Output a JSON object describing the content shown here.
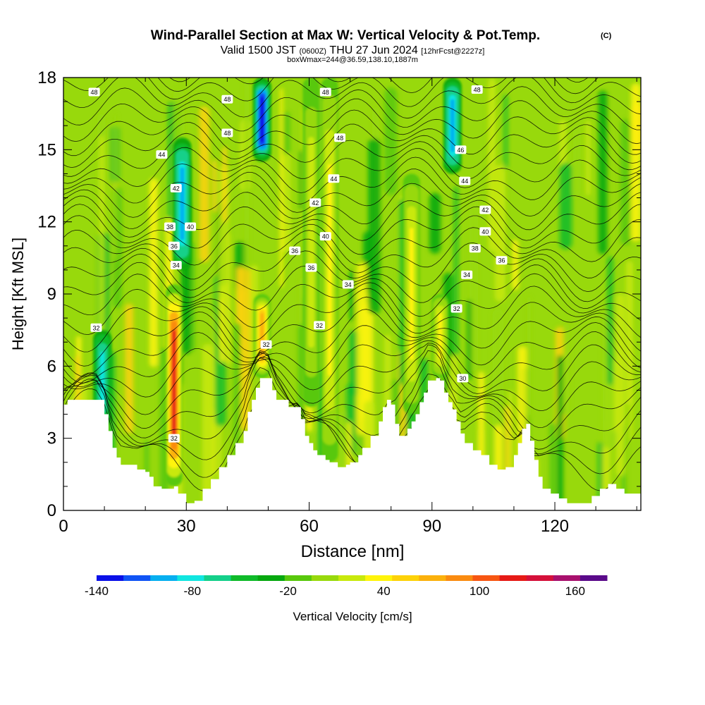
{
  "title": {
    "main": "Wind-Parallel Section at Max W: Vertical Velocity & Pot.Temp.",
    "mark": "(C)",
    "line2_a": "Valid 1500 JST",
    "line2_b": "(0600Z)",
    "line2_c": "THU 27 Jun 2024",
    "line2_d": "[12hrFcst@2227z]",
    "line3": "boxWmax=244@36.59,138.10,1887m"
  },
  "chart_data": {
    "type": "heatmap",
    "xlabel": "Distance [nm]",
    "ylabel": "Height [Kft MSL]",
    "xlim": [
      0,
      141
    ],
    "ylim": [
      0,
      18
    ],
    "x_ticks": [
      "0",
      "30",
      "60",
      "90",
      "120"
    ],
    "y_ticks": [
      "0",
      "3",
      "6",
      "9",
      "12",
      "15",
      "18"
    ],
    "x_tick_values": [
      0,
      30,
      60,
      90,
      120
    ],
    "y_tick_values": [
      0,
      3,
      6,
      9,
      12,
      15,
      18
    ],
    "terrain_kft": [
      [
        0,
        4.4
      ],
      [
        1,
        4.6
      ],
      [
        8,
        4.6
      ],
      [
        10,
        4.0
      ],
      [
        11,
        3.3
      ],
      [
        12,
        2.6
      ],
      [
        13,
        2.2
      ],
      [
        14,
        1.9
      ],
      [
        16,
        1.9
      ],
      [
        18,
        1.7
      ],
      [
        20,
        1.6
      ],
      [
        21,
        1.4
      ],
      [
        22,
        1.0
      ],
      [
        24,
        0.9
      ],
      [
        27,
        1.0
      ],
      [
        28,
        0.7
      ],
      [
        30,
        0.3
      ],
      [
        32,
        0.4
      ],
      [
        34,
        0.9
      ],
      [
        36,
        1.3
      ],
      [
        38,
        1.8
      ],
      [
        40,
        2.3
      ],
      [
        42,
        2.8
      ],
      [
        44,
        3.3
      ],
      [
        45,
        4.1
      ],
      [
        46,
        4.6
      ],
      [
        47,
        5.1
      ],
      [
        48,
        5.5
      ],
      [
        50,
        5.5
      ],
      [
        51,
        5.0
      ],
      [
        52,
        4.6
      ],
      [
        55,
        4.3
      ],
      [
        57,
        4.3
      ],
      [
        58,
        3.8
      ],
      [
        59,
        3.1
      ],
      [
        60,
        2.8
      ],
      [
        61,
        2.5
      ],
      [
        62,
        2.3
      ],
      [
        64,
        2.1
      ],
      [
        65,
        2.0
      ],
      [
        67,
        1.8
      ],
      [
        69,
        1.9
      ],
      [
        70,
        2.0
      ],
      [
        72,
        2.3
      ],
      [
        73,
        2.6
      ],
      [
        75,
        3.1
      ],
      [
        77,
        3.7
      ],
      [
        78,
        4.3
      ],
      [
        79,
        4.6
      ],
      [
        80,
        4.4
      ],
      [
        81,
        3.6
      ],
      [
        82,
        3.1
      ],
      [
        84,
        3.4
      ],
      [
        85,
        3.7
      ],
      [
        86,
        4.0
      ],
      [
        87,
        4.5
      ],
      [
        88,
        4.9
      ],
      [
        89,
        5.4
      ],
      [
        91,
        5.5
      ],
      [
        92,
        5.4
      ],
      [
        93,
        4.9
      ],
      [
        94,
        4.5
      ],
      [
        95,
        4.2
      ],
      [
        96,
        3.7
      ],
      [
        97,
        3.2
      ],
      [
        98,
        2.8
      ],
      [
        100,
        2.5
      ],
      [
        102,
        2.3
      ],
      [
        104,
        1.9
      ],
      [
        106,
        1.7
      ],
      [
        108,
        1.8
      ],
      [
        110,
        2.3
      ],
      [
        111,
        2.8
      ],
      [
        112,
        3.4
      ],
      [
        113,
        3.6
      ],
      [
        114,
        2.9
      ],
      [
        115,
        2.1
      ],
      [
        116,
        1.4
      ],
      [
        117,
        0.9
      ],
      [
        119,
        0.7
      ],
      [
        121,
        0.5
      ],
      [
        123,
        0.3
      ],
      [
        127,
        0.3
      ],
      [
        129,
        0.6
      ],
      [
        131,
        0.9
      ],
      [
        133,
        1.1
      ],
      [
        135,
        0.9
      ],
      [
        137,
        0.7
      ],
      [
        141,
        0.7
      ]
    ],
    "updraft_bands": [
      {
        "x": 27,
        "top": 9.4,
        "bottom": 1.0,
        "peak_cm_s": 170
      },
      {
        "x": 48.5,
        "top": 9.0,
        "bottom": 5.5,
        "peak_cm_s": 110
      },
      {
        "x": 92,
        "top": 9.0,
        "bottom": 5.5,
        "peak_cm_s": 70
      },
      {
        "x": 60.5,
        "top": 18,
        "bottom": 4.3,
        "peak_cm_s": 50
      },
      {
        "x": 65,
        "top": 18,
        "bottom": 2.0,
        "peak_cm_s": 60
      },
      {
        "x": 85,
        "top": 14,
        "bottom": 4.0,
        "peak_cm_s": 60
      }
    ],
    "downdraft_bands": [
      {
        "x": 48.5,
        "top": 18,
        "bottom": 14.5,
        "peak_cm_s": -130
      },
      {
        "x": 29,
        "top": 15.5,
        "bottom": 10.0,
        "peak_cm_s": -90
      },
      {
        "x": 95,
        "top": 18,
        "bottom": 14.0,
        "peak_cm_s": -90
      },
      {
        "x": 9.5,
        "top": 7.5,
        "bottom": 3.5,
        "peak_cm_s": -70
      }
    ],
    "theta_contours": {
      "interval_c": 2,
      "levels": [
        30,
        32,
        34,
        36,
        38,
        40,
        42,
        44,
        46,
        48
      ],
      "labels": [
        {
          "text": "48",
          "x": 7.5,
          "y": 17.4
        },
        {
          "text": "48",
          "x": 40,
          "y": 17.1
        },
        {
          "text": "48",
          "x": 40,
          "y": 15.7
        },
        {
          "text": "48",
          "x": 64,
          "y": 17.4
        },
        {
          "text": "48",
          "x": 67.5,
          "y": 15.5
        },
        {
          "text": "48",
          "x": 101,
          "y": 17.5
        },
        {
          "text": "44",
          "x": 24,
          "y": 14.8
        },
        {
          "text": "46",
          "x": 97,
          "y": 15.0
        },
        {
          "text": "44",
          "x": 66,
          "y": 13.8
        },
        {
          "text": "44",
          "x": 98,
          "y": 13.7
        },
        {
          "text": "42",
          "x": 27.5,
          "y": 13.4
        },
        {
          "text": "42",
          "x": 61.5,
          "y": 12.8
        },
        {
          "text": "42",
          "x": 103,
          "y": 12.5
        },
        {
          "text": "38",
          "x": 26,
          "y": 11.8
        },
        {
          "text": "40",
          "x": 31,
          "y": 11.8
        },
        {
          "text": "40",
          "x": 64,
          "y": 11.4
        },
        {
          "text": "40",
          "x": 103,
          "y": 11.6
        },
        {
          "text": "36",
          "x": 27,
          "y": 11.0
        },
        {
          "text": "36",
          "x": 56.5,
          "y": 10.8
        },
        {
          "text": "36",
          "x": 60.5,
          "y": 10.1
        },
        {
          "text": "38",
          "x": 100.5,
          "y": 10.9
        },
        {
          "text": "36",
          "x": 107,
          "y": 10.4
        },
        {
          "text": "34",
          "x": 27.5,
          "y": 10.2
        },
        {
          "text": "34",
          "x": 69.5,
          "y": 9.4
        },
        {
          "text": "34",
          "x": 98.5,
          "y": 9.8
        },
        {
          "text": "32",
          "x": 8,
          "y": 7.6
        },
        {
          "text": "32",
          "x": 62.5,
          "y": 7.7
        },
        {
          "text": "32",
          "x": 96,
          "y": 8.4
        },
        {
          "text": "32",
          "x": 49.5,
          "y": 6.9
        },
        {
          "text": "30",
          "x": 97.5,
          "y": 5.5
        },
        {
          "text": "32",
          "x": 27,
          "y": 3.0
        }
      ]
    },
    "colorbar": {
      "label": "Vertical Velocity [cm/s]",
      "min": -140,
      "max": 180,
      "step": 20,
      "ticks": [
        "-140",
        "-80",
        "-20",
        "40",
        "100",
        "160"
      ],
      "tick_values": [
        -140,
        -80,
        -20,
        40,
        100,
        160
      ],
      "colors": [
        "#0a10e8",
        "#1054f5",
        "#06aff0",
        "#10e6e0",
        "#14d08a",
        "#0fbb2a",
        "#07a80f",
        "#58c80c",
        "#98d90c",
        "#c8e90c",
        "#fff40a",
        "#fdd208",
        "#fbb10c",
        "#fa8b10",
        "#f75612",
        "#e61a16",
        "#d5103a",
        "#a8106d",
        "#5a0a8a"
      ]
    }
  }
}
